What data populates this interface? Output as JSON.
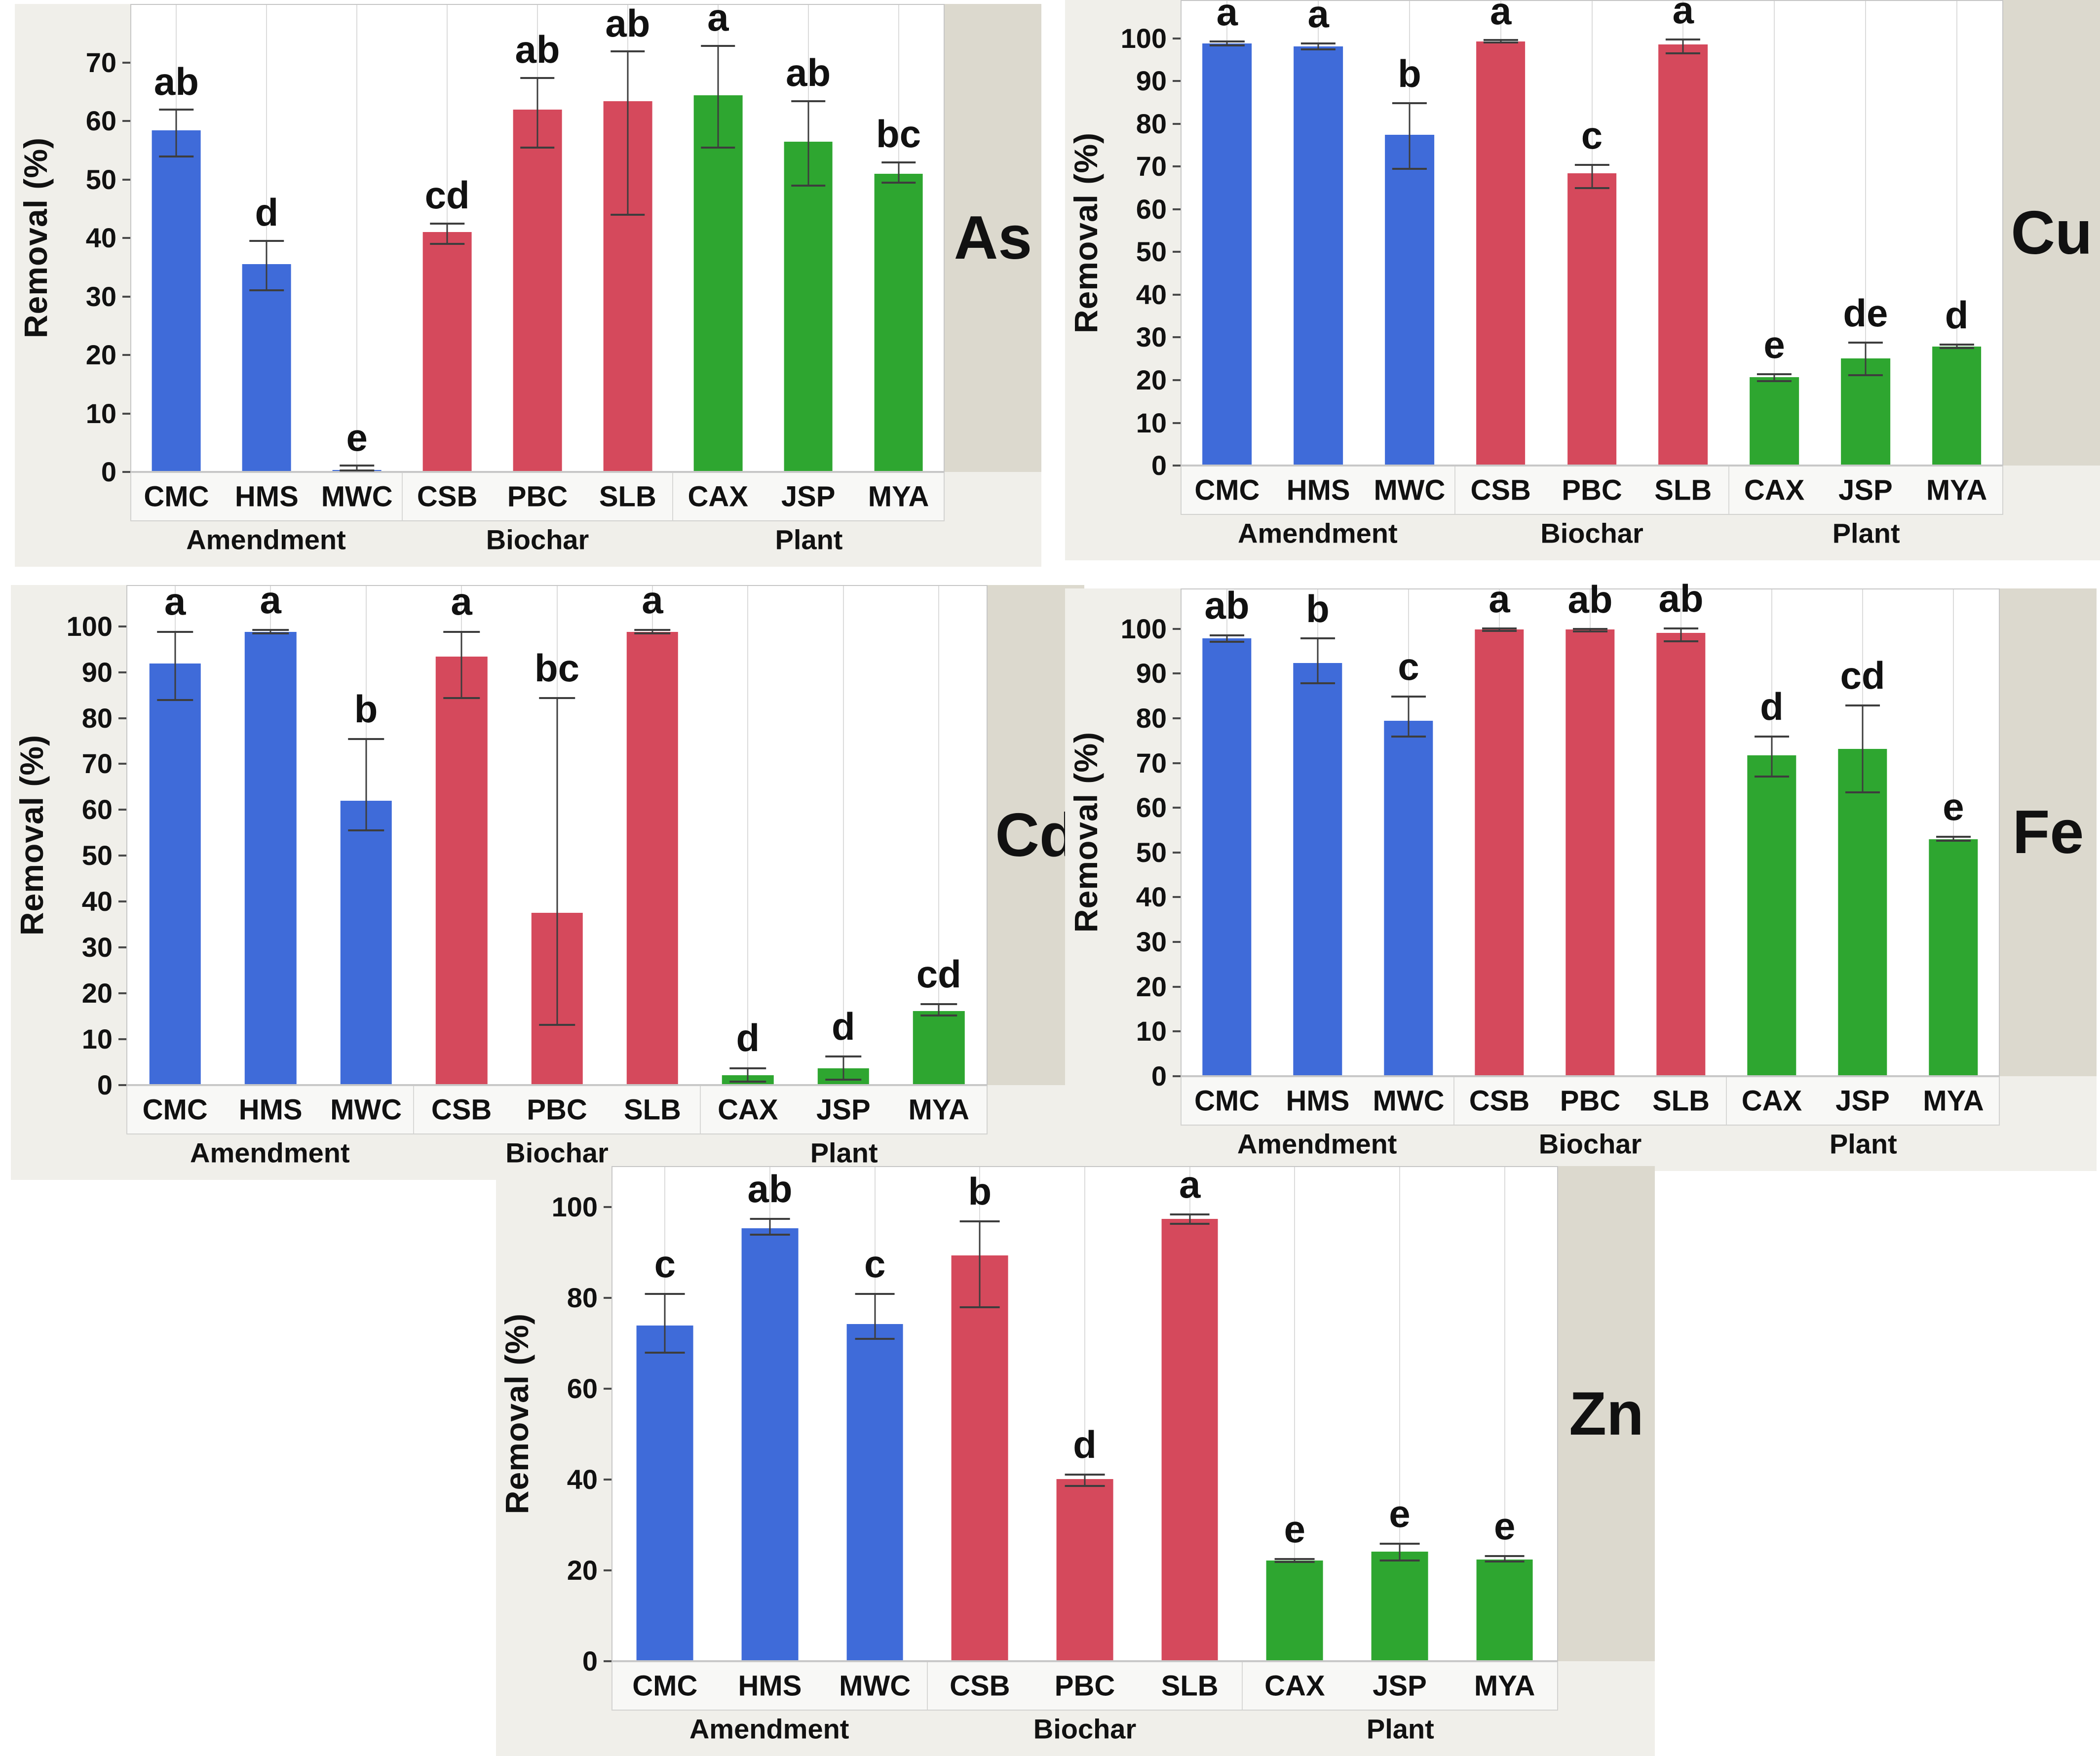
{
  "figure": {
    "y_axis_title": "Removal (%)",
    "group_section_labels": [
      "Amendment",
      "Biochar",
      "Plant"
    ],
    "colors": {
      "amendment_blue": "#3F6BD9",
      "biochar_red": "#D5495C",
      "plant_green": "#2EA630",
      "strip_bg": "#DCD9CE",
      "chart_margin_bg": "#F0EFEA",
      "axis_strip_bg": "#F8F8F6",
      "gridline": "#DBDBDB",
      "error_bar": "#3D3D3D",
      "text": "#111111"
    }
  },
  "chart_data": [
    {
      "type": "bar",
      "metal": "As",
      "ylabel": "Removal (%)",
      "xlabel": "",
      "y_axis_max": 70,
      "y_tick_step": 10,
      "y_view_max": 80,
      "letter_offset": 1.6,
      "grid": "vertical-category-lines",
      "legend": "none",
      "categories": [
        "CMC",
        "HMS",
        "MWC",
        "CSB",
        "PBC",
        "SLB",
        "CAX",
        "JSP",
        "MYA"
      ],
      "group_labels": [
        "Amendment",
        "Biochar",
        "Plant"
      ],
      "bars": [
        {
          "label": "CMC",
          "group": "Amendment",
          "value": 58.5,
          "err_low": 54.0,
          "err_high": 62.0,
          "letter": "ab"
        },
        {
          "label": "HMS",
          "group": "Amendment",
          "value": 35.5,
          "err_low": 31.0,
          "err_high": 39.5,
          "letter": "d"
        },
        {
          "label": "MWC",
          "group": "Amendment",
          "value": 0.2,
          "err_low": 0.1,
          "err_high": 0.9,
          "letter": "e"
        },
        {
          "label": "CSB",
          "group": "Biochar",
          "value": 41.0,
          "err_low": 39.0,
          "err_high": 42.5,
          "letter": "cd"
        },
        {
          "label": "PBC",
          "group": "Biochar",
          "value": 62.0,
          "err_low": 55.5,
          "err_high": 67.5,
          "letter": "ab"
        },
        {
          "label": "SLB",
          "group": "Biochar",
          "value": 63.5,
          "err_low": 44.0,
          "err_high": 72.0,
          "letter": "ab"
        },
        {
          "label": "CAX",
          "group": "Plant",
          "value": 64.5,
          "err_low": 55.5,
          "err_high": 73.0,
          "letter": "a"
        },
        {
          "label": "JSP",
          "group": "Plant",
          "value": 56.5,
          "err_low": 49.0,
          "err_high": 63.5,
          "letter": "ab"
        },
        {
          "label": "MYA",
          "group": "Plant",
          "value": 51.0,
          "err_low": 49.5,
          "err_high": 53.0,
          "letter": "bc"
        }
      ]
    },
    {
      "type": "bar",
      "metal": "Cu",
      "ylabel": "Removal (%)",
      "xlabel": "",
      "y_axis_max": 100,
      "y_tick_step": 10,
      "y_view_max": 109,
      "letter_offset": 2.4,
      "grid": "vertical-category-lines",
      "legend": "none",
      "categories": [
        "CMC",
        "HMS",
        "MWC",
        "CSB",
        "PBC",
        "SLB",
        "CAX",
        "JSP",
        "MYA"
      ],
      "group_labels": [
        "Amendment",
        "Biochar",
        "Plant"
      ],
      "bars": [
        {
          "label": "CMC",
          "group": "Amendment",
          "value": 99.0,
          "err_low": 98.5,
          "err_high": 99.5,
          "letter": "a"
        },
        {
          "label": "HMS",
          "group": "Amendment",
          "value": 98.3,
          "err_low": 97.6,
          "err_high": 99.0,
          "letter": "a"
        },
        {
          "label": "MWC",
          "group": "Amendment",
          "value": 77.5,
          "err_low": 69.5,
          "err_high": 85.0,
          "letter": "b"
        },
        {
          "label": "CSB",
          "group": "Biochar",
          "value": 99.5,
          "err_low": 99.2,
          "err_high": 99.8,
          "letter": "a"
        },
        {
          "label": "PBC",
          "group": "Biochar",
          "value": 68.5,
          "err_low": 65.0,
          "err_high": 70.5,
          "letter": "c"
        },
        {
          "label": "SLB",
          "group": "Biochar",
          "value": 98.8,
          "err_low": 96.7,
          "err_high": 100.0,
          "letter": "a"
        },
        {
          "label": "CAX",
          "group": "Plant",
          "value": 20.5,
          "err_low": 19.6,
          "err_high": 21.3,
          "letter": "e"
        },
        {
          "label": "JSP",
          "group": "Plant",
          "value": 25.0,
          "err_low": 21.0,
          "err_high": 28.7,
          "letter": "de"
        },
        {
          "label": "MYA",
          "group": "Plant",
          "value": 27.8,
          "err_low": 27.4,
          "err_high": 28.2,
          "letter": "d"
        }
      ]
    },
    {
      "type": "bar",
      "metal": "Cd",
      "ylabel": "Removal (%)",
      "xlabel": "",
      "y_axis_max": 100,
      "y_tick_step": 10,
      "y_view_max": 109,
      "letter_offset": 2.4,
      "grid": "vertical-category-lines",
      "legend": "none",
      "categories": [
        "CMC",
        "HMS",
        "MWC",
        "CSB",
        "PBC",
        "SLB",
        "CAX",
        "JSP",
        "MYA"
      ],
      "group_labels": [
        "Amendment",
        "Biochar",
        "Plant"
      ],
      "bars": [
        {
          "label": "CMC",
          "group": "Amendment",
          "value": 92.0,
          "err_low": 84.0,
          "err_high": 99.0,
          "letter": "a"
        },
        {
          "label": "HMS",
          "group": "Amendment",
          "value": 99.0,
          "err_low": 98.6,
          "err_high": 99.4,
          "letter": "a"
        },
        {
          "label": "MWC",
          "group": "Amendment",
          "value": 62.0,
          "err_low": 55.5,
          "err_high": 75.5,
          "letter": "b"
        },
        {
          "label": "CSB",
          "group": "Biochar",
          "value": 93.5,
          "err_low": 84.5,
          "err_high": 99.0,
          "letter": "a"
        },
        {
          "label": "PBC",
          "group": "Biochar",
          "value": 37.5,
          "err_low": 13.0,
          "err_high": 84.5,
          "letter": "bc"
        },
        {
          "label": "SLB",
          "group": "Biochar",
          "value": 99.0,
          "err_low": 98.6,
          "err_high": 99.4,
          "letter": "a"
        },
        {
          "label": "CAX",
          "group": "Plant",
          "value": 2.0,
          "err_low": 0.5,
          "err_high": 3.5,
          "letter": "d"
        },
        {
          "label": "JSP",
          "group": "Plant",
          "value": 3.5,
          "err_low": 1.0,
          "err_high": 6.0,
          "letter": "d"
        },
        {
          "label": "MYA",
          "group": "Plant",
          "value": 16.0,
          "err_low": 15.0,
          "err_high": 17.5,
          "letter": "cd"
        }
      ]
    },
    {
      "type": "bar",
      "metal": "Fe",
      "ylabel": "Removal (%)",
      "xlabel": "",
      "y_axis_max": 100,
      "y_tick_step": 10,
      "y_view_max": 109,
      "letter_offset": 2.4,
      "grid": "vertical-category-lines",
      "legend": "none",
      "categories": [
        "CMC",
        "HMS",
        "MWC",
        "CSB",
        "PBC",
        "SLB",
        "CAX",
        "JSP",
        "MYA"
      ],
      "group_labels": [
        "Amendment",
        "Biochar",
        "Plant"
      ],
      "bars": [
        {
          "label": "CMC",
          "group": "Amendment",
          "value": 98.0,
          "err_low": 97.3,
          "err_high": 98.7,
          "letter": "ab"
        },
        {
          "label": "HMS",
          "group": "Amendment",
          "value": 92.5,
          "err_low": 88.0,
          "err_high": 98.0,
          "letter": "b"
        },
        {
          "label": "MWC",
          "group": "Amendment",
          "value": 79.5,
          "err_low": 76.0,
          "err_high": 85.0,
          "letter": "c"
        },
        {
          "label": "CSB",
          "group": "Biochar",
          "value": 100.0,
          "err_low": 99.7,
          "err_high": 100.2,
          "letter": "a"
        },
        {
          "label": "PBC",
          "group": "Biochar",
          "value": 100.0,
          "err_low": 99.6,
          "err_high": 100.1,
          "letter": "ab"
        },
        {
          "label": "SLB",
          "group": "Biochar",
          "value": 99.3,
          "err_low": 97.4,
          "err_high": 100.3,
          "letter": "ab"
        },
        {
          "label": "CAX",
          "group": "Plant",
          "value": 71.8,
          "err_low": 67.0,
          "err_high": 76.0,
          "letter": "d"
        },
        {
          "label": "JSP",
          "group": "Plant",
          "value": 73.2,
          "err_low": 63.5,
          "err_high": 83.0,
          "letter": "cd"
        },
        {
          "label": "MYA",
          "group": "Plant",
          "value": 53.0,
          "err_low": 52.6,
          "err_high": 53.5,
          "letter": "e"
        }
      ]
    },
    {
      "type": "bar",
      "metal": "Zn",
      "ylabel": "Removal (%)",
      "xlabel": "",
      "y_axis_max": 100,
      "y_tick_step": 20,
      "y_view_max": 109,
      "letter_offset": 2.4,
      "grid": "vertical-category-lines",
      "legend": "none",
      "categories": [
        "CMC",
        "HMS",
        "MWC",
        "CSB",
        "PBC",
        "SLB",
        "CAX",
        "JSP",
        "MYA"
      ],
      "group_labels": [
        "Amendment",
        "Biochar",
        "Plant"
      ],
      "bars": [
        {
          "label": "CMC",
          "group": "Amendment",
          "value": 74.0,
          "err_low": 68.0,
          "err_high": 81.0,
          "letter": "c"
        },
        {
          "label": "HMS",
          "group": "Amendment",
          "value": 95.5,
          "err_low": 94.0,
          "err_high": 97.5,
          "letter": "ab"
        },
        {
          "label": "MWC",
          "group": "Amendment",
          "value": 74.3,
          "err_low": 71.0,
          "err_high": 81.0,
          "letter": "c"
        },
        {
          "label": "CSB",
          "group": "Biochar",
          "value": 89.5,
          "err_low": 78.0,
          "err_high": 97.0,
          "letter": "b"
        },
        {
          "label": "PBC",
          "group": "Biochar",
          "value": 40.0,
          "err_low": 38.5,
          "err_high": 41.0,
          "letter": "d"
        },
        {
          "label": "SLB",
          "group": "Biochar",
          "value": 97.5,
          "err_low": 96.5,
          "err_high": 98.5,
          "letter": "a"
        },
        {
          "label": "CAX",
          "group": "Plant",
          "value": 22.0,
          "err_low": 21.7,
          "err_high": 22.4,
          "letter": "e"
        },
        {
          "label": "JSP",
          "group": "Plant",
          "value": 24.0,
          "err_low": 22.0,
          "err_high": 25.8,
          "letter": "e"
        },
        {
          "label": "MYA",
          "group": "Plant",
          "value": 22.3,
          "err_low": 21.8,
          "err_high": 23.0,
          "letter": "e"
        }
      ]
    }
  ]
}
